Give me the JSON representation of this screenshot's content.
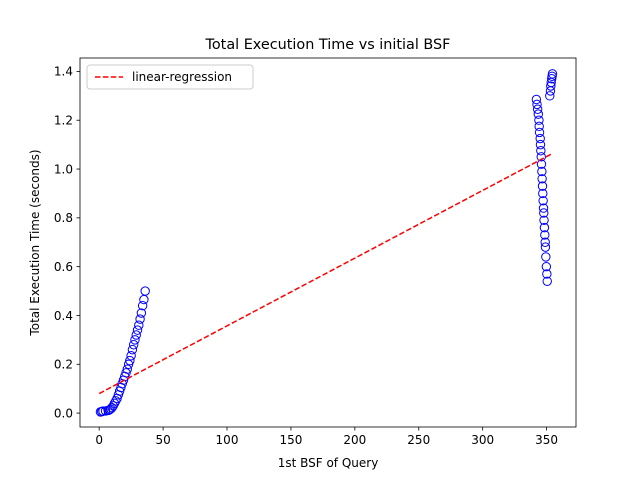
{
  "chart_data": {
    "type": "scatter",
    "title": "Total Execution Time vs initial BSF",
    "xlabel": "1st BSF of Query",
    "ylabel": "Total Execution Time (seconds)",
    "xlim": [
      -15,
      373
    ],
    "ylim": [
      -0.057,
      1.455
    ],
    "x_ticks": [
      0,
      50,
      100,
      150,
      200,
      250,
      300,
      350
    ],
    "y_ticks": [
      0.0,
      0.2,
      0.4,
      0.6,
      0.8,
      1.0,
      1.2,
      1.4
    ],
    "x_tick_labels": [
      "0",
      "50",
      "100",
      "150",
      "200",
      "250",
      "300",
      "350"
    ],
    "y_tick_labels": [
      "0.0",
      "0.2",
      "0.4",
      "0.6",
      "0.8",
      "1.0",
      "1.2",
      "1.4"
    ],
    "grid": false,
    "legend_position": "top-left",
    "legend": [
      {
        "label": "linear-regression",
        "style": "dashed-line",
        "color": "#ff0000"
      }
    ],
    "series": [
      {
        "kind": "scatter",
        "marker": "hollow-circle",
        "color": "#0000ff",
        "points": [
          [
            1,
            0.005
          ],
          [
            2,
            0.006
          ],
          [
            3,
            0.008
          ],
          [
            5,
            0.009
          ],
          [
            7,
            0.011
          ],
          [
            8,
            0.013
          ],
          [
            9,
            0.017
          ],
          [
            10,
            0.022
          ],
          [
            11,
            0.03
          ],
          [
            12,
            0.04
          ],
          [
            13,
            0.05
          ],
          [
            14,
            0.06
          ],
          [
            15,
            0.075
          ],
          [
            16,
            0.09
          ],
          [
            17,
            0.105
          ],
          [
            18,
            0.12
          ],
          [
            19,
            0.135
          ],
          [
            20,
            0.15
          ],
          [
            21,
            0.165
          ],
          [
            22,
            0.18
          ],
          [
            23,
            0.2
          ],
          [
            24,
            0.215
          ],
          [
            25,
            0.235
          ],
          [
            26,
            0.26
          ],
          [
            27,
            0.28
          ],
          [
            28,
            0.3
          ],
          [
            29,
            0.32
          ],
          [
            30,
            0.34
          ],
          [
            31,
            0.36
          ],
          [
            32,
            0.385
          ],
          [
            33,
            0.41
          ],
          [
            34,
            0.44
          ],
          [
            35,
            0.465
          ],
          [
            36,
            0.5
          ],
          [
            342,
            1.285
          ],
          [
            342.5,
            1.265
          ],
          [
            343,
            1.245
          ],
          [
            343.5,
            1.225
          ],
          [
            344,
            1.2
          ],
          [
            344.2,
            1.175
          ],
          [
            344.5,
            1.15
          ],
          [
            345,
            1.125
          ],
          [
            345.2,
            1.1
          ],
          [
            345.5,
            1.075
          ],
          [
            345.8,
            1.05
          ],
          [
            346,
            1.02
          ],
          [
            346.3,
            0.99
          ],
          [
            346.5,
            0.96
          ],
          [
            346.8,
            0.93
          ],
          [
            347,
            0.9
          ],
          [
            347.3,
            0.87
          ],
          [
            347.6,
            0.84
          ],
          [
            347.8,
            0.82
          ],
          [
            348,
            0.79
          ],
          [
            348.3,
            0.76
          ],
          [
            348.6,
            0.73
          ],
          [
            348.9,
            0.7
          ],
          [
            349.1,
            0.68
          ],
          [
            349.4,
            0.64
          ],
          [
            349.8,
            0.6
          ],
          [
            350.2,
            0.57
          ],
          [
            350.5,
            0.54
          ],
          [
            352.5,
            1.3
          ],
          [
            353,
            1.32
          ],
          [
            353.3,
            1.34
          ],
          [
            353.6,
            1.355
          ],
          [
            354,
            1.37
          ],
          [
            354.3,
            1.38
          ],
          [
            354.6,
            1.39
          ]
        ]
      },
      {
        "kind": "line",
        "name": "linear-regression",
        "style": "dashed",
        "color": "#ff0000",
        "points": [
          [
            0,
            0.08
          ],
          [
            355,
            1.065
          ]
        ]
      }
    ]
  }
}
